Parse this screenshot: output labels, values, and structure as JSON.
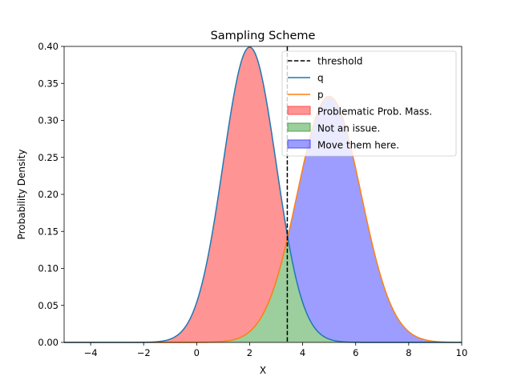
{
  "chart_data": {
    "type": "area",
    "title": "Sampling Scheme",
    "xlabel": "X",
    "ylabel": "Probability Density",
    "xlim": [
      -5,
      10
    ],
    "ylim": [
      0,
      0.4
    ],
    "x_ticks": [
      -4,
      -2,
      0,
      2,
      4,
      6,
      8,
      10
    ],
    "x_tick_labels": [
      "−4",
      "−2",
      "0",
      "2",
      "4",
      "6",
      "8",
      "10"
    ],
    "y_ticks": [
      0.0,
      0.05,
      0.1,
      0.15,
      0.2,
      0.25,
      0.3,
      0.35,
      0.4
    ],
    "y_tick_labels": [
      "0.00",
      "0.05",
      "0.10",
      "0.15",
      "0.20",
      "0.25",
      "0.30",
      "0.35",
      "0.40"
    ],
    "grid": false,
    "legend_position": "top-right",
    "threshold": 3.42,
    "series": [
      {
        "name": "q",
        "type": "line",
        "distribution": "normal",
        "mean": 2,
        "sd": 1,
        "color": "#1f77b4"
      },
      {
        "name": "p",
        "type": "line",
        "distribution": "normal",
        "mean": 5,
        "sd": 1.2,
        "color": "#ff7f0e"
      }
    ],
    "regions": [
      {
        "name": "Problematic Prob. Mass.",
        "color": "#ff4d4d",
        "opacity": 0.6
      },
      {
        "name": "Not an issue.",
        "color": "#4ca64c",
        "opacity": 0.55
      },
      {
        "name": "Move them here.",
        "color": "#4d4dff",
        "opacity": 0.55
      }
    ],
    "legend": {
      "threshold_label": "threshold",
      "q_label": "q",
      "p_label": "p",
      "problem_label": "Problematic Prob. Mass.",
      "ok_label": "Not an issue.",
      "move_label": "Move them here."
    }
  }
}
